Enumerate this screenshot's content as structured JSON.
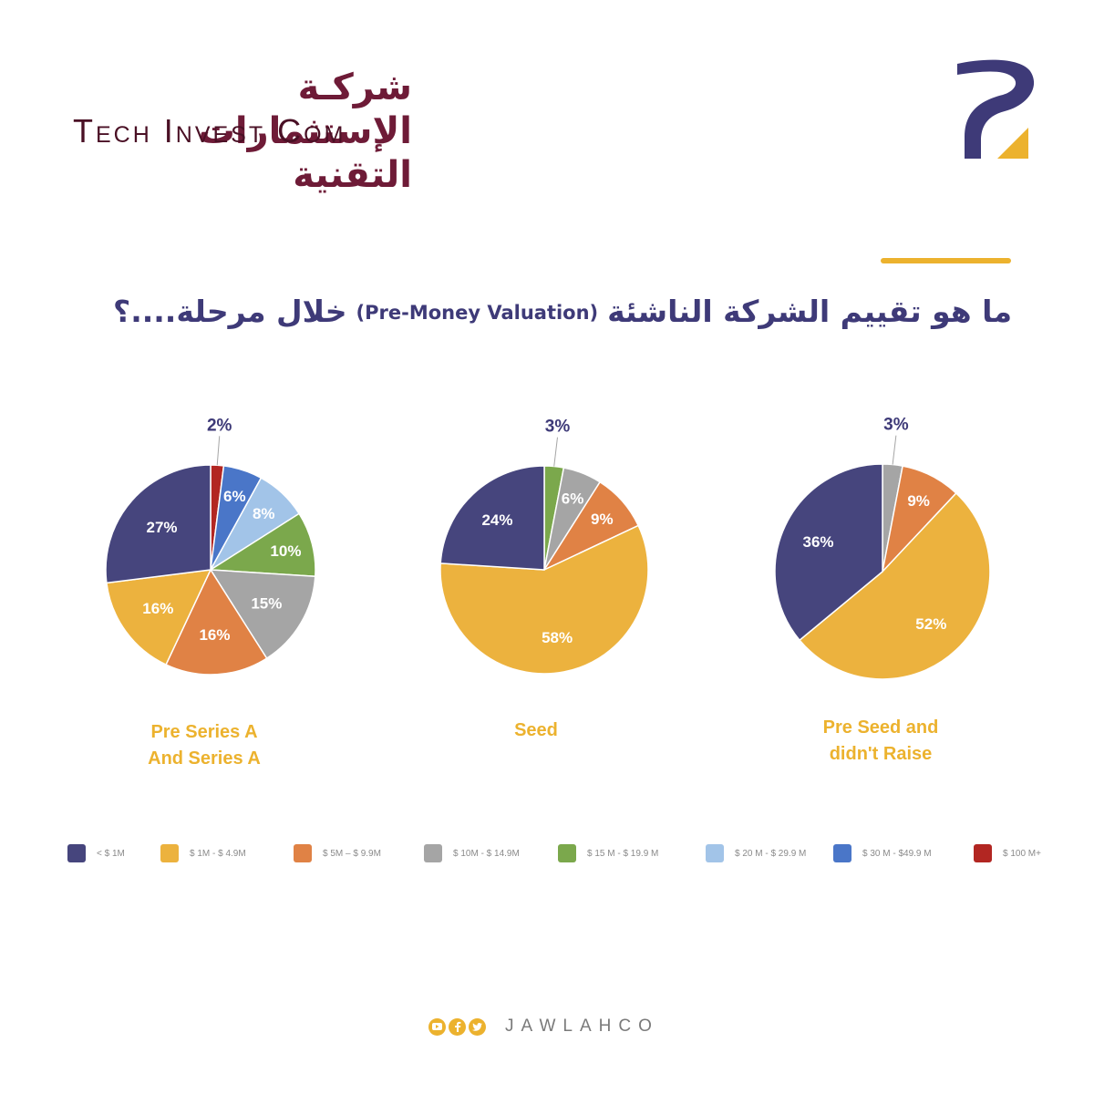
{
  "brand": {
    "name_ar": "شركـة الإستثمارات التقنية",
    "name_en": "Tech Invest Com"
  },
  "title": {
    "main_ar": "ما هو تقييم الشركة الناشئة",
    "en": "(Pre-Money Valuation)",
    "end_ar": "خلال مرحلة....؟"
  },
  "colors": {
    "navy": "#46457d",
    "yellow": "#ecb23e",
    "orange": "#e08245",
    "gray": "#a5a5a5",
    "green": "#7ba84c",
    "lightblue": "#a2c4e8",
    "blue": "#4a76c8",
    "red": "#b22622",
    "title": "#3e3a78",
    "accent": "#ecb22e"
  },
  "legend": [
    {
      "label": "< $ 1M",
      "color": "#46457d"
    },
    {
      "label": "$ 1M - $ 4.9M",
      "color": "#ecb23e"
    },
    {
      "label": "$ 5M – $ 9.9M",
      "color": "#e08245"
    },
    {
      "label": "$ 10M - $ 14.9M",
      "color": "#a5a5a5"
    },
    {
      "label": "$ 15 M - $ 19.9 M",
      "color": "#7ba84c"
    },
    {
      "label": "$ 20 M - $ 29.9 M",
      "color": "#a2c4e8"
    },
    {
      "label": "$ 30 M - $49.9 M",
      "color": "#4a76c8"
    },
    {
      "label": "$ 100 M+",
      "color": "#b22622"
    }
  ],
  "chart_data": [
    {
      "type": "pie",
      "title": "Pre Series A And Series A",
      "caption_lines": [
        "Pre Series A",
        "And Series A"
      ],
      "slices": [
        {
          "label": "$ 100 M+",
          "value": 2,
          "text": "2%"
        },
        {
          "label": "$ 30 M - $49.9 M",
          "value": 6,
          "text": "6%"
        },
        {
          "label": "$ 20 M - $ 29.9 M",
          "value": 8,
          "text": "8%"
        },
        {
          "label": "$ 15 M - $ 19.9 M",
          "value": 10,
          "text": "10%"
        },
        {
          "label": "$ 10M - $ 14.9M",
          "value": 15,
          "text": "15%"
        },
        {
          "label": "$ 5M – $ 9.9M",
          "value": 16,
          "text": "16%"
        },
        {
          "label": "$ 1M - $ 4.9M",
          "value": 16,
          "text": "16%"
        },
        {
          "label": "< $ 1M",
          "value": 27,
          "text": "27%"
        }
      ]
    },
    {
      "type": "pie",
      "title": "Seed",
      "caption_lines": [
        "Seed"
      ],
      "slices": [
        {
          "label": "$ 15 M - $ 19.9 M",
          "value": 3,
          "text": "3%"
        },
        {
          "label": "$ 10M - $ 14.9M",
          "value": 6,
          "text": "6%"
        },
        {
          "label": "$ 5M – $ 9.9M",
          "value": 9,
          "text": "9%"
        },
        {
          "label": "$ 1M - $ 4.9M",
          "value": 58,
          "text": "58%"
        },
        {
          "label": "< $ 1M",
          "value": 24,
          "text": "24%"
        }
      ]
    },
    {
      "type": "pie",
      "title": "Pre Seed and didn't Raise",
      "caption_lines": [
        "Pre Seed and",
        "didn't Raise"
      ],
      "slices": [
        {
          "label": "$ 10M - $ 14.9M",
          "value": 3,
          "text": "3%"
        },
        {
          "label": "$ 5M – $ 9.9M",
          "value": 9,
          "text": "9%"
        },
        {
          "label": "$ 1M - $ 4.9M",
          "value": 52,
          "text": "52%"
        },
        {
          "label": "< $ 1M",
          "value": 36,
          "text": "36%"
        }
      ]
    }
  ],
  "footer": {
    "handle": "JAWLAHCO",
    "icons": [
      "youtube-icon",
      "facebook-icon",
      "twitter-icon"
    ]
  }
}
